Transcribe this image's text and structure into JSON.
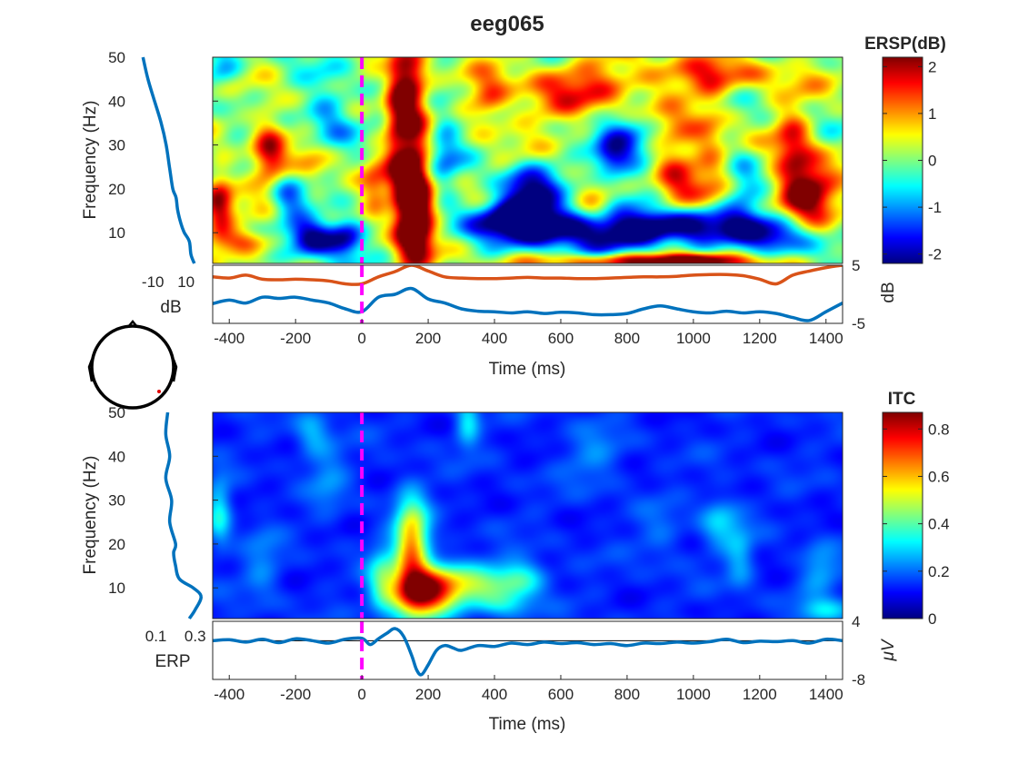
{
  "title": "eeg065",
  "chart_data": [
    {
      "name": "ersp",
      "type": "heatmap",
      "colorbar_title": "ERSP(dB)",
      "colormap": "jet",
      "clim": [
        -2.2,
        2.2
      ],
      "colorbar_ticks": [
        "-2",
        "-1",
        "0",
        "1",
        "2"
      ],
      "ylabel": "Frequency (Hz)",
      "xlabel": "Time (ms)",
      "xlim": [
        -450,
        1450
      ],
      "ylim": [
        3,
        50
      ],
      "x_ticks": [
        "-400",
        "-200",
        "0",
        "200",
        "400",
        "600",
        "800",
        "1000",
        "1200",
        "1400"
      ],
      "y_ticks": [
        "10",
        "20",
        "30",
        "40",
        "50"
      ],
      "stimulus_line_ms": 0,
      "stimulus_line_color": "#ff00ff",
      "blobs": [
        {
          "t": 160,
          "f": 13,
          "st": 40,
          "sf": 7,
          "v": 3.2
        },
        {
          "t": 150,
          "f": 25,
          "st": 35,
          "sf": 10,
          "v": 2.2
        },
        {
          "t": 140,
          "f": 44,
          "st": 35,
          "sf": 5,
          "v": 2.4
        },
        {
          "t": 100,
          "f": 35,
          "st": 25,
          "sf": 12,
          "v": 1.1
        },
        {
          "t": 480,
          "f": 13,
          "st": 120,
          "sf": 3,
          "v": -2.6
        },
        {
          "t": 750,
          "f": 10,
          "st": 200,
          "sf": 3,
          "v": -2.4
        },
        {
          "t": 1000,
          "f": 12,
          "st": 130,
          "sf": 3,
          "v": -2.0
        },
        {
          "t": 1250,
          "f": 9,
          "st": 70,
          "sf": 3,
          "v": -1.8
        },
        {
          "t": 500,
          "f": 19,
          "st": 60,
          "sf": 4,
          "v": -2.4
        },
        {
          "t": -150,
          "f": 9,
          "st": 50,
          "sf": 3,
          "v": -2.5
        },
        {
          "t": -50,
          "f": 9,
          "st": 40,
          "sf": 3,
          "v": -2.2
        },
        {
          "t": 1340,
          "f": 20,
          "st": 60,
          "sf": 5,
          "v": 2.6
        },
        {
          "t": 1300,
          "f": 30,
          "st": 40,
          "sf": 6,
          "v": 1.4
        },
        {
          "t": 950,
          "f": 23,
          "st": 50,
          "sf": 8,
          "v": 1.6
        },
        {
          "t": 1050,
          "f": 30,
          "st": 40,
          "sf": 10,
          "v": 1.0
        },
        {
          "t": -430,
          "f": 17,
          "st": 30,
          "sf": 6,
          "v": 1.7
        },
        {
          "t": -280,
          "f": 28,
          "st": 35,
          "sf": 8,
          "v": 1.5
        },
        {
          "t": -350,
          "f": 8,
          "st": 60,
          "sf": 2,
          "v": 1.5
        },
        {
          "t": 650,
          "f": 42,
          "st": 160,
          "sf": 5,
          "v": 1.2
        },
        {
          "t": 380,
          "f": 40,
          "st": 40,
          "sf": 4,
          "v": 1.2
        },
        {
          "t": 1050,
          "f": 46,
          "st": 200,
          "sf": 3,
          "v": 1.0
        },
        {
          "t": 800,
          "f": 30,
          "st": 60,
          "sf": 6,
          "v": -1.4
        },
        {
          "t": 750,
          "f": 27,
          "st": 40,
          "sf": 3,
          "v": -1.5
        },
        {
          "t": -220,
          "f": 18,
          "st": 50,
          "sf": 4,
          "v": -1.3
        },
        {
          "t": -100,
          "f": 38,
          "st": 50,
          "sf": 6,
          "v": -1.2
        },
        {
          "t": -420,
          "f": 47,
          "st": 40,
          "sf": 3,
          "v": -1.2
        },
        {
          "t": -150,
          "f": 24,
          "st": 40,
          "sf": 4,
          "v": 1.0
        },
        {
          "t": 250,
          "f": 30,
          "st": 35,
          "sf": 8,
          "v": -1.0
        },
        {
          "t": 40,
          "f": 20,
          "st": 30,
          "sf": 6,
          "v": 0.9
        },
        {
          "t": 700,
          "f": 17,
          "st": 40,
          "sf": 4,
          "v": 0.8
        },
        {
          "t": 1150,
          "f": 20,
          "st": 40,
          "sf": 6,
          "v": -1.1
        },
        {
          "t": 860,
          "f": 3.5,
          "st": 220,
          "sf": 1.2,
          "v": 2.2
        },
        {
          "t": 1000,
          "f": 3.5,
          "st": 80,
          "sf": 1.2,
          "v": 1.5
        }
      ],
      "spectrum_panel": {
        "xlabel": "dB",
        "x_ticks": [
          "-10",
          "10"
        ],
        "xlim": [
          -20,
          25
        ],
        "freq_hz": [
          3,
          5,
          8,
          10,
          12,
          15,
          18,
          20,
          25,
          30,
          35,
          40,
          45,
          50
        ],
        "power_db": [
          15,
          13,
          12,
          9,
          7,
          5,
          4,
          2,
          0,
          -2,
          -5,
          -9,
          -13,
          -16
        ]
      },
      "envelope_panel": {
        "ylabel": "dB",
        "ylim": [
          -5,
          5
        ],
        "y_ticks": [
          "5",
          "-5"
        ],
        "time_ms": [
          -450,
          -400,
          -350,
          -300,
          -250,
          -200,
          -150,
          -100,
          -50,
          0,
          50,
          100,
          150,
          200,
          250,
          300,
          350,
          400,
          450,
          500,
          550,
          600,
          650,
          700,
          750,
          800,
          850,
          900,
          950,
          1000,
          1050,
          1100,
          1150,
          1200,
          1250,
          1300,
          1350,
          1400,
          1450
        ],
        "upper_db": [
          3.0,
          2.8,
          3.3,
          2.6,
          2.5,
          2.6,
          2.5,
          2.3,
          1.8,
          1.8,
          3.0,
          3.9,
          5.0,
          4.0,
          3.0,
          2.8,
          2.7,
          2.7,
          2.8,
          2.9,
          2.8,
          2.8,
          2.7,
          2.7,
          2.8,
          2.9,
          3.0,
          3.0,
          3.1,
          3.3,
          3.4,
          3.4,
          3.2,
          2.6,
          1.8,
          3.3,
          4.0,
          4.6,
          5.0
        ],
        "lower_db": [
          -1.6,
          -1.0,
          -1.5,
          -0.5,
          -0.7,
          -0.5,
          -1.0,
          -1.5,
          -2.5,
          -3.0,
          -0.5,
          0.0,
          1.0,
          -0.8,
          -1.5,
          -2.5,
          -2.9,
          -3.0,
          -3.2,
          -3.0,
          -3.3,
          -3.1,
          -3.2,
          -3.5,
          -3.5,
          -3.3,
          -2.5,
          -2.0,
          -2.5,
          -3.0,
          -3.2,
          -2.9,
          -3.2,
          -3.0,
          -3.3,
          -4.0,
          -4.5,
          -3.0,
          -1.5
        ]
      }
    },
    {
      "name": "itc",
      "type": "heatmap",
      "colorbar_title": "ITC",
      "colormap": "jet",
      "clim": [
        0,
        0.87
      ],
      "colorbar_ticks": [
        "0",
        "0.2",
        "0.4",
        "0.6",
        "0.8"
      ],
      "ylabel": "Frequency (Hz)",
      "xlabel": "Time (ms)",
      "xlim": [
        -450,
        1450
      ],
      "ylim": [
        3,
        50
      ],
      "x_ticks": [
        "-400",
        "-200",
        "0",
        "200",
        "400",
        "600",
        "800",
        "1000",
        "1200",
        "1400"
      ],
      "y_ticks": [
        "10",
        "20",
        "30",
        "40",
        "50"
      ],
      "stimulus_line_ms": 0,
      "stimulus_line_color": "#ff00ff",
      "blobs": [
        {
          "t": 180,
          "f": 9,
          "st": 65,
          "sf": 4,
          "v": 0.75
        },
        {
          "t": 150,
          "f": 20,
          "st": 35,
          "sf": 7,
          "v": 0.5
        },
        {
          "t": 330,
          "f": 11,
          "st": 90,
          "sf": 3,
          "v": 0.3
        },
        {
          "t": 480,
          "f": 12,
          "st": 50,
          "sf": 3,
          "v": 0.2
        },
        {
          "t": 60,
          "f": 12,
          "st": 30,
          "sf": 5,
          "v": 0.2
        },
        {
          "t": 420,
          "f": 6,
          "st": 60,
          "sf": 2,
          "v": 0.15
        },
        {
          "t": 320,
          "f": 48,
          "st": 25,
          "sf": 4,
          "v": 0.18
        },
        {
          "t": -430,
          "f": 27,
          "st": 25,
          "sf": 5,
          "v": 0.2
        },
        {
          "t": 1080,
          "f": 25,
          "st": 40,
          "sf": 4,
          "v": 0.15
        },
        {
          "t": 1140,
          "f": 17,
          "st": 30,
          "sf": 5,
          "v": 0.12
        },
        {
          "t": -150,
          "f": 45,
          "st": 35,
          "sf": 4,
          "v": 0.12
        },
        {
          "t": -100,
          "f": 35,
          "st": 40,
          "sf": 6,
          "v": 0.08
        },
        {
          "t": 1380,
          "f": 14,
          "st": 40,
          "sf": 4,
          "v": 0.12
        },
        {
          "t": 1400,
          "f": 5,
          "st": 60,
          "sf": 2,
          "v": 0.15
        },
        {
          "t": -300,
          "f": 15,
          "st": 40,
          "sf": 6,
          "v": 0.08
        },
        {
          "t": 700,
          "f": 40,
          "st": 60,
          "sf": 5,
          "v": 0.08
        },
        {
          "t": 900,
          "f": 22,
          "st": 50,
          "sf": 5,
          "v": 0.06
        }
      ],
      "erp_spectrum_panel": {
        "xlabel": "ERP",
        "x_ticks": [
          "0.1",
          "0.3"
        ],
        "xlim": [
          0,
          0.38
        ],
        "freq_hz": [
          3,
          5,
          8,
          10,
          12,
          15,
          18,
          20,
          25,
          30,
          35,
          40,
          45,
          50
        ],
        "values": [
          0.27,
          0.3,
          0.33,
          0.29,
          0.22,
          0.2,
          0.19,
          0.2,
          0.17,
          0.18,
          0.15,
          0.17,
          0.15,
          0.16
        ]
      },
      "erp_panel": {
        "ylabel": "μV",
        "ylim": [
          -8,
          4
        ],
        "y_ticks": [
          "4",
          "-8"
        ],
        "time_ms": [
          -450,
          -400,
          -350,
          -300,
          -250,
          -200,
          -150,
          -100,
          -50,
          0,
          25,
          50,
          75,
          100,
          125,
          150,
          165,
          180,
          200,
          225,
          250,
          275,
          300,
          350,
          400,
          450,
          500,
          550,
          600,
          650,
          700,
          750,
          800,
          850,
          900,
          950,
          1000,
          1050,
          1100,
          1150,
          1200,
          1250,
          1300,
          1350,
          1400,
          1450
        ],
        "uv": [
          0.0,
          0.2,
          -0.3,
          0.3,
          -0.4,
          0.4,
          0.0,
          -0.5,
          0.3,
          0.5,
          -0.8,
          0.4,
          1.5,
          2.5,
          1.0,
          -3.0,
          -6.0,
          -7.0,
          -5.0,
          -2.0,
          -1.0,
          -1.5,
          -2.0,
          -1.0,
          -1.2,
          -0.5,
          -0.8,
          -0.3,
          -0.6,
          -0.4,
          -0.8,
          -0.6,
          -1.0,
          -0.5,
          -0.6,
          -0.3,
          -0.5,
          -0.2,
          0.3,
          -0.4,
          -0.1,
          -0.2,
          0.0,
          -0.5,
          0.3,
          0.0
        ]
      }
    }
  ]
}
